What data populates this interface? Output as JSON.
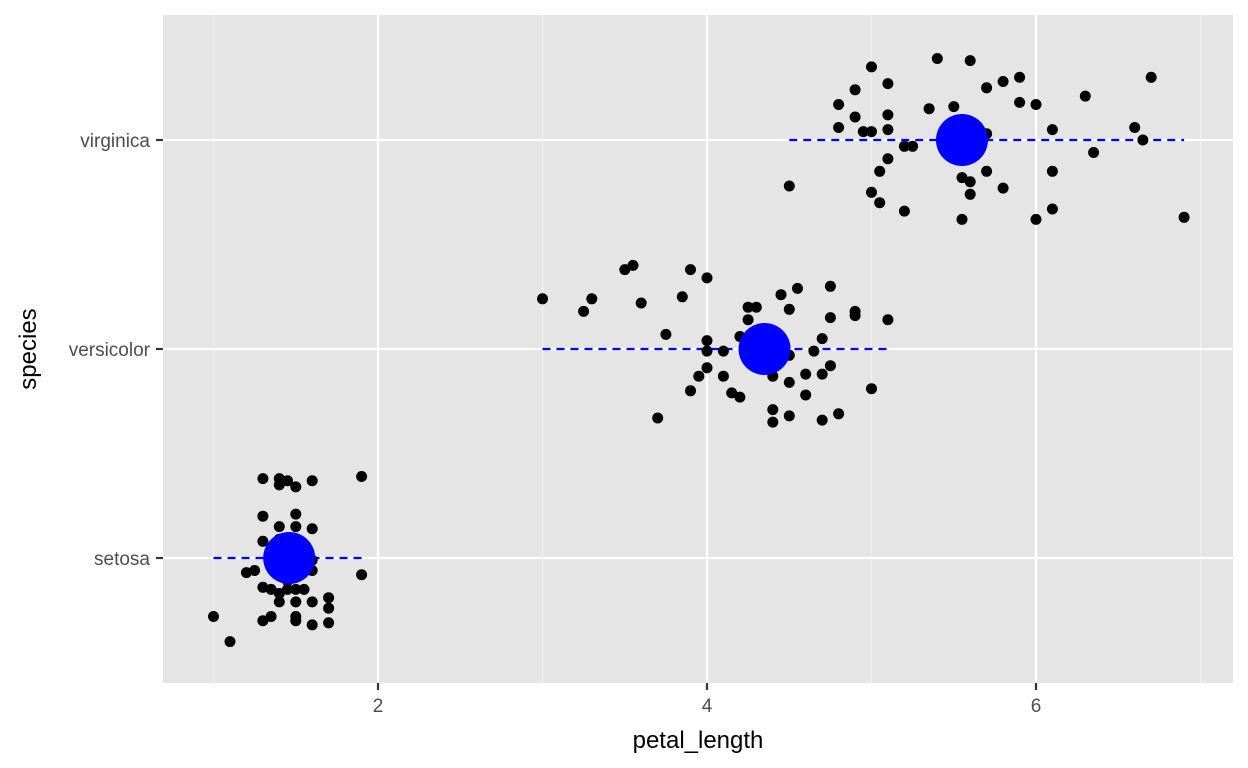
{
  "chart_data": {
    "type": "scatter",
    "xlabel": "petal_length",
    "ylabel": "species",
    "xlim": [
      0.7,
      7.2
    ],
    "x_ticks": [
      2,
      4,
      6
    ],
    "x_tick_labels": [
      "2",
      "4",
      "6"
    ],
    "categories": [
      "setosa",
      "versicolor",
      "virginica"
    ],
    "grid": true,
    "colors": {
      "panel": "#e5e5e5",
      "grid": "#ffffff",
      "points": "#000000",
      "summary": "#0000ff",
      "text": "#4d4d4d"
    },
    "summary": [
      {
        "category": "setosa",
        "mean": 1.46,
        "range": [
          1.0,
          1.9
        ]
      },
      {
        "category": "versicolor",
        "mean": 4.35,
        "range": [
          3.0,
          5.1
        ]
      },
      {
        "category": "virginica",
        "mean": 5.55,
        "range": [
          4.5,
          6.9
        ]
      }
    ],
    "points": [
      {
        "category": "setosa",
        "x": 1.3,
        "jitter": 0.38
      },
      {
        "category": "setosa",
        "x": 1.4,
        "jitter": 0.38
      },
      {
        "category": "setosa",
        "x": 1.45,
        "jitter": 0.37
      },
      {
        "category": "setosa",
        "x": 1.5,
        "jitter": 0.34
      },
      {
        "category": "setosa",
        "x": 1.4,
        "jitter": 0.35
      },
      {
        "category": "setosa",
        "x": 1.6,
        "jitter": 0.37
      },
      {
        "category": "setosa",
        "x": 1.9,
        "jitter": 0.39
      },
      {
        "category": "setosa",
        "x": 1.3,
        "jitter": 0.2
      },
      {
        "category": "setosa",
        "x": 1.5,
        "jitter": 0.21
      },
      {
        "category": "setosa",
        "x": 1.4,
        "jitter": 0.15
      },
      {
        "category": "setosa",
        "x": 1.5,
        "jitter": 0.15
      },
      {
        "category": "setosa",
        "x": 1.6,
        "jitter": 0.14
      },
      {
        "category": "setosa",
        "x": 1.3,
        "jitter": 0.08
      },
      {
        "category": "setosa",
        "x": 1.4,
        "jitter": 0.09
      },
      {
        "category": "setosa",
        "x": 1.5,
        "jitter": 0.06
      },
      {
        "category": "setosa",
        "x": 1.55,
        "jitter": 0.02
      },
      {
        "category": "setosa",
        "x": 1.45,
        "jitter": 0.0
      },
      {
        "category": "setosa",
        "x": 1.6,
        "jitter": -0.01
      },
      {
        "category": "setosa",
        "x": 1.5,
        "jitter": -0.03
      },
      {
        "category": "setosa",
        "x": 1.2,
        "jitter": -0.07
      },
      {
        "category": "setosa",
        "x": 1.25,
        "jitter": -0.06
      },
      {
        "category": "setosa",
        "x": 1.6,
        "jitter": -0.06
      },
      {
        "category": "setosa",
        "x": 1.9,
        "jitter": -0.08
      },
      {
        "category": "setosa",
        "x": 1.45,
        "jitter": -0.11
      },
      {
        "category": "setosa",
        "x": 1.3,
        "jitter": -0.14
      },
      {
        "category": "setosa",
        "x": 1.35,
        "jitter": -0.15
      },
      {
        "category": "setosa",
        "x": 1.45,
        "jitter": -0.15
      },
      {
        "category": "setosa",
        "x": 1.5,
        "jitter": -0.15
      },
      {
        "category": "setosa",
        "x": 1.55,
        "jitter": -0.15
      },
      {
        "category": "setosa",
        "x": 1.4,
        "jitter": -0.17
      },
      {
        "category": "setosa",
        "x": 1.7,
        "jitter": -0.19
      },
      {
        "category": "setosa",
        "x": 1.4,
        "jitter": -0.21
      },
      {
        "category": "setosa",
        "x": 1.5,
        "jitter": -0.21
      },
      {
        "category": "setosa",
        "x": 1.6,
        "jitter": -0.21
      },
      {
        "category": "setosa",
        "x": 1.7,
        "jitter": -0.24
      },
      {
        "category": "setosa",
        "x": 1.35,
        "jitter": -0.28
      },
      {
        "category": "setosa",
        "x": 1.5,
        "jitter": -0.28
      },
      {
        "category": "setosa",
        "x": 1.3,
        "jitter": -0.3
      },
      {
        "category": "setosa",
        "x": 1.5,
        "jitter": -0.3
      },
      {
        "category": "setosa",
        "x": 1.6,
        "jitter": -0.32
      },
      {
        "category": "setosa",
        "x": 1.7,
        "jitter": -0.31
      },
      {
        "category": "setosa",
        "x": 1.0,
        "jitter": -0.28
      },
      {
        "category": "setosa",
        "x": 1.1,
        "jitter": -0.4
      },
      {
        "category": "versicolor",
        "x": 3.5,
        "jitter": 0.38
      },
      {
        "category": "versicolor",
        "x": 3.55,
        "jitter": 0.4
      },
      {
        "category": "versicolor",
        "x": 3.9,
        "jitter": 0.38
      },
      {
        "category": "versicolor",
        "x": 4.0,
        "jitter": 0.34
      },
      {
        "category": "versicolor",
        "x": 3.0,
        "jitter": 0.24
      },
      {
        "category": "versicolor",
        "x": 3.3,
        "jitter": 0.24
      },
      {
        "category": "versicolor",
        "x": 3.25,
        "jitter": 0.18
      },
      {
        "category": "versicolor",
        "x": 3.6,
        "jitter": 0.22
      },
      {
        "category": "versicolor",
        "x": 3.85,
        "jitter": 0.25
      },
      {
        "category": "versicolor",
        "x": 4.25,
        "jitter": 0.2
      },
      {
        "category": "versicolor",
        "x": 4.3,
        "jitter": 0.2
      },
      {
        "category": "versicolor",
        "x": 4.45,
        "jitter": 0.26
      },
      {
        "category": "versicolor",
        "x": 4.55,
        "jitter": 0.29
      },
      {
        "category": "versicolor",
        "x": 4.75,
        "jitter": 0.3
      },
      {
        "category": "versicolor",
        "x": 4.5,
        "jitter": 0.19
      },
      {
        "category": "versicolor",
        "x": 4.9,
        "jitter": 0.18
      },
      {
        "category": "versicolor",
        "x": 4.9,
        "jitter": 0.16
      },
      {
        "category": "versicolor",
        "x": 5.1,
        "jitter": 0.14
      },
      {
        "category": "versicolor",
        "x": 4.25,
        "jitter": 0.14
      },
      {
        "category": "versicolor",
        "x": 4.75,
        "jitter": 0.15
      },
      {
        "category": "versicolor",
        "x": 3.75,
        "jitter": 0.07
      },
      {
        "category": "versicolor",
        "x": 4.0,
        "jitter": 0.04
      },
      {
        "category": "versicolor",
        "x": 4.2,
        "jitter": 0.06
      },
      {
        "category": "versicolor",
        "x": 4.3,
        "jitter": 0.06
      },
      {
        "category": "versicolor",
        "x": 4.7,
        "jitter": 0.05
      },
      {
        "category": "versicolor",
        "x": 4.0,
        "jitter": -0.01
      },
      {
        "category": "versicolor",
        "x": 4.1,
        "jitter": -0.01
      },
      {
        "category": "versicolor",
        "x": 4.5,
        "jitter": -0.03
      },
      {
        "category": "versicolor",
        "x": 4.65,
        "jitter": -0.01
      },
      {
        "category": "versicolor",
        "x": 4.0,
        "jitter": -0.09
      },
      {
        "category": "versicolor",
        "x": 3.95,
        "jitter": -0.13
      },
      {
        "category": "versicolor",
        "x": 4.1,
        "jitter": -0.13
      },
      {
        "category": "versicolor",
        "x": 4.4,
        "jitter": -0.13
      },
      {
        "category": "versicolor",
        "x": 4.5,
        "jitter": -0.16
      },
      {
        "category": "versicolor",
        "x": 4.6,
        "jitter": -0.12
      },
      {
        "category": "versicolor",
        "x": 4.7,
        "jitter": -0.12
      },
      {
        "category": "versicolor",
        "x": 4.75,
        "jitter": -0.08
      },
      {
        "category": "versicolor",
        "x": 3.9,
        "jitter": -0.2
      },
      {
        "category": "versicolor",
        "x": 4.15,
        "jitter": -0.21
      },
      {
        "category": "versicolor",
        "x": 4.2,
        "jitter": -0.23
      },
      {
        "category": "versicolor",
        "x": 4.6,
        "jitter": -0.22
      },
      {
        "category": "versicolor",
        "x": 5.0,
        "jitter": -0.19
      },
      {
        "category": "versicolor",
        "x": 3.7,
        "jitter": -0.33
      },
      {
        "category": "versicolor",
        "x": 4.4,
        "jitter": -0.29
      },
      {
        "category": "versicolor",
        "x": 4.5,
        "jitter": -0.32
      },
      {
        "category": "versicolor",
        "x": 4.4,
        "jitter": -0.35
      },
      {
        "category": "versicolor",
        "x": 4.7,
        "jitter": -0.34
      },
      {
        "category": "versicolor",
        "x": 4.8,
        "jitter": -0.31
      },
      {
        "category": "virginica",
        "x": 5.0,
        "jitter": 0.35
      },
      {
        "category": "virginica",
        "x": 5.4,
        "jitter": 0.39
      },
      {
        "category": "virginica",
        "x": 5.6,
        "jitter": 0.38
      },
      {
        "category": "virginica",
        "x": 4.9,
        "jitter": 0.24
      },
      {
        "category": "virginica",
        "x": 5.1,
        "jitter": 0.27
      },
      {
        "category": "virginica",
        "x": 5.7,
        "jitter": 0.25
      },
      {
        "category": "virginica",
        "x": 5.8,
        "jitter": 0.28
      },
      {
        "category": "virginica",
        "x": 5.9,
        "jitter": 0.3
      },
      {
        "category": "virginica",
        "x": 6.7,
        "jitter": 0.3
      },
      {
        "category": "virginica",
        "x": 6.3,
        "jitter": 0.21
      },
      {
        "category": "virginica",
        "x": 4.8,
        "jitter": 0.17
      },
      {
        "category": "virginica",
        "x": 4.9,
        "jitter": 0.11
      },
      {
        "category": "virginica",
        "x": 5.1,
        "jitter": 0.12
      },
      {
        "category": "virginica",
        "x": 5.35,
        "jitter": 0.15
      },
      {
        "category": "virginica",
        "x": 5.5,
        "jitter": 0.16
      },
      {
        "category": "virginica",
        "x": 5.9,
        "jitter": 0.18
      },
      {
        "category": "virginica",
        "x": 6.0,
        "jitter": 0.17
      },
      {
        "category": "virginica",
        "x": 4.8,
        "jitter": 0.06
      },
      {
        "category": "virginica",
        "x": 4.95,
        "jitter": 0.04
      },
      {
        "category": "virginica",
        "x": 5.0,
        "jitter": 0.04
      },
      {
        "category": "virginica",
        "x": 5.1,
        "jitter": 0.05
      },
      {
        "category": "virginica",
        "x": 5.5,
        "jitter": 0.08
      },
      {
        "category": "virginica",
        "x": 5.6,
        "jitter": 0.04
      },
      {
        "category": "virginica",
        "x": 5.7,
        "jitter": 0.03
      },
      {
        "category": "virginica",
        "x": 6.1,
        "jitter": 0.05
      },
      {
        "category": "virginica",
        "x": 6.6,
        "jitter": 0.06
      },
      {
        "category": "virginica",
        "x": 5.2,
        "jitter": -0.03
      },
      {
        "category": "virginica",
        "x": 5.25,
        "jitter": -0.03
      },
      {
        "category": "virginica",
        "x": 6.65,
        "jitter": 0.0
      },
      {
        "category": "virginica",
        "x": 5.1,
        "jitter": -0.09
      },
      {
        "category": "virginica",
        "x": 6.35,
        "jitter": -0.06
      },
      {
        "category": "virginica",
        "x": 5.05,
        "jitter": -0.15
      },
      {
        "category": "virginica",
        "x": 5.55,
        "jitter": -0.18
      },
      {
        "category": "virginica",
        "x": 5.6,
        "jitter": -0.2
      },
      {
        "category": "virginica",
        "x": 5.7,
        "jitter": -0.15
      },
      {
        "category": "virginica",
        "x": 6.1,
        "jitter": -0.15
      },
      {
        "category": "virginica",
        "x": 4.5,
        "jitter": -0.22
      },
      {
        "category": "virginica",
        "x": 5.0,
        "jitter": -0.25
      },
      {
        "category": "virginica",
        "x": 5.6,
        "jitter": -0.26
      },
      {
        "category": "virginica",
        "x": 5.8,
        "jitter": -0.23
      },
      {
        "category": "virginica",
        "x": 5.05,
        "jitter": -0.3
      },
      {
        "category": "virginica",
        "x": 5.2,
        "jitter": -0.34
      },
      {
        "category": "virginica",
        "x": 6.1,
        "jitter": -0.33
      },
      {
        "category": "virginica",
        "x": 5.55,
        "jitter": -0.38
      },
      {
        "category": "virginica",
        "x": 6.0,
        "jitter": -0.38
      },
      {
        "category": "virginica",
        "x": 6.9,
        "jitter": -0.37
      }
    ]
  }
}
